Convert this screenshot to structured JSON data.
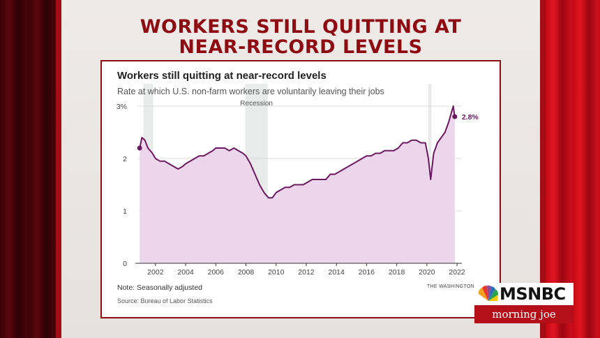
{
  "headline": {
    "line1": "WORKERS STILL QUITTING AT",
    "line2": "NEAR-RECORD LEVELS"
  },
  "chart_data": {
    "type": "area",
    "title": "Workers still quitting at near-record levels",
    "subtitle": "Rate at which U.S. non-farm workers are voluntarily leaving their jobs",
    "note": "Note: Seasonally adjusted",
    "source": "Source: Bureau of Labor Statistics",
    "credit": "THE WASHINGTON POST",
    "xlim": [
      2000.85,
      2021.95
    ],
    "ylim": [
      0,
      3
    ],
    "x_ticks": [
      2002,
      2004,
      2006,
      2008,
      2010,
      2012,
      2014,
      2016,
      2018,
      2020,
      2022
    ],
    "y_ticks": [
      {
        "value": 0,
        "label": "0"
      },
      {
        "value": 1,
        "label": "1"
      },
      {
        "value": 2,
        "label": "2"
      },
      {
        "value": 3,
        "label": "3%"
      }
    ],
    "recessions": [
      {
        "start": 2001.2,
        "end": 2001.85,
        "label": ""
      },
      {
        "start": 2007.95,
        "end": 2009.45,
        "label": "Recession"
      },
      {
        "start": 2020.1,
        "end": 2020.3,
        "label": ""
      }
    ],
    "end_label": "2.8%",
    "line_color": "#6a1a5e",
    "fill_color": "#ecd6ec",
    "series": [
      {
        "points": [
          [
            2000.95,
            2.2
          ],
          [
            2001.1,
            2.4
          ],
          [
            2001.3,
            2.35
          ],
          [
            2001.5,
            2.2
          ],
          [
            2001.8,
            2.1
          ],
          [
            2002.0,
            2.0
          ],
          [
            2002.3,
            1.95
          ],
          [
            2002.6,
            1.95
          ],
          [
            2002.9,
            1.9
          ],
          [
            2003.2,
            1.85
          ],
          [
            2003.5,
            1.8
          ],
          [
            2003.8,
            1.85
          ],
          [
            2004.0,
            1.9
          ],
          [
            2004.3,
            1.95
          ],
          [
            2004.6,
            2.0
          ],
          [
            2004.9,
            2.05
          ],
          [
            2005.2,
            2.05
          ],
          [
            2005.5,
            2.1
          ],
          [
            2005.8,
            2.15
          ],
          [
            2006.0,
            2.2
          ],
          [
            2006.3,
            2.2
          ],
          [
            2006.6,
            2.2
          ],
          [
            2006.9,
            2.15
          ],
          [
            2007.2,
            2.2
          ],
          [
            2007.5,
            2.15
          ],
          [
            2007.8,
            2.1
          ],
          [
            2008.0,
            2.05
          ],
          [
            2008.3,
            1.9
          ],
          [
            2008.6,
            1.7
          ],
          [
            2008.9,
            1.5
          ],
          [
            2009.2,
            1.35
          ],
          [
            2009.5,
            1.25
          ],
          [
            2009.75,
            1.25
          ],
          [
            2010.0,
            1.35
          ],
          [
            2010.3,
            1.4
          ],
          [
            2010.6,
            1.45
          ],
          [
            2010.9,
            1.45
          ],
          [
            2011.2,
            1.5
          ],
          [
            2011.5,
            1.5
          ],
          [
            2011.8,
            1.5
          ],
          [
            2012.1,
            1.55
          ],
          [
            2012.4,
            1.6
          ],
          [
            2012.7,
            1.6
          ],
          [
            2013.0,
            1.6
          ],
          [
            2013.3,
            1.6
          ],
          [
            2013.6,
            1.7
          ],
          [
            2013.9,
            1.7
          ],
          [
            2014.2,
            1.75
          ],
          [
            2014.5,
            1.8
          ],
          [
            2014.8,
            1.85
          ],
          [
            2015.1,
            1.9
          ],
          [
            2015.4,
            1.95
          ],
          [
            2015.7,
            2.0
          ],
          [
            2016.0,
            2.05
          ],
          [
            2016.3,
            2.05
          ],
          [
            2016.6,
            2.1
          ],
          [
            2016.9,
            2.1
          ],
          [
            2017.2,
            2.15
          ],
          [
            2017.5,
            2.15
          ],
          [
            2017.8,
            2.15
          ],
          [
            2018.1,
            2.2
          ],
          [
            2018.4,
            2.3
          ],
          [
            2018.7,
            2.3
          ],
          [
            2019.0,
            2.35
          ],
          [
            2019.3,
            2.35
          ],
          [
            2019.6,
            2.3
          ],
          [
            2019.9,
            2.3
          ],
          [
            2020.1,
            2.0
          ],
          [
            2020.25,
            1.6
          ],
          [
            2020.45,
            2.1
          ],
          [
            2020.7,
            2.3
          ],
          [
            2020.95,
            2.4
          ],
          [
            2021.2,
            2.5
          ],
          [
            2021.45,
            2.7
          ],
          [
            2021.65,
            2.9
          ],
          [
            2021.75,
            3.0
          ],
          [
            2021.85,
            2.8
          ]
        ]
      }
    ]
  },
  "logo": {
    "network": "MSNBC",
    "show": "morning joe"
  }
}
